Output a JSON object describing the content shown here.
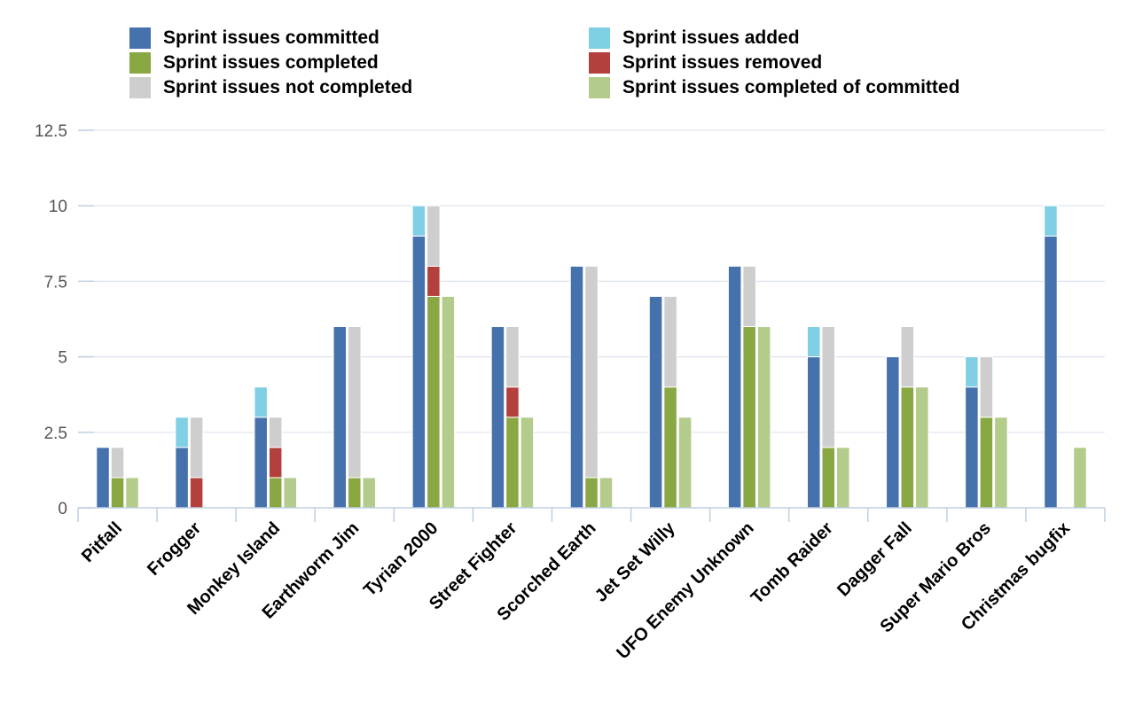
{
  "chart_data": {
    "type": "bar",
    "ylim": [
      0,
      12.5
    ],
    "y_ticks": [
      "0",
      "2.5",
      "5",
      "7.5",
      "10",
      "12.5"
    ],
    "y_tick_values": [
      0,
      2.5,
      5,
      7.5,
      10,
      12.5
    ],
    "grid": true,
    "legend_position": "top",
    "categories": [
      "Pitfall",
      "Frogger",
      "Monkey Island",
      "Earthworm Jim",
      "Tyrian 2000",
      "Street Fighter",
      "Scorched Earth",
      "Jet Set Willy",
      "UFO Enemy Unknown",
      "Tomb Raider",
      "Dagger Fall",
      "Super Mario Bros",
      "Christmas bugfix"
    ],
    "series": [
      {
        "name": "Sprint issues committed",
        "color": "#4571ad",
        "values": [
          2,
          2,
          3,
          6,
          9,
          6,
          8,
          7,
          8,
          5,
          5,
          4,
          9
        ]
      },
      {
        "name": "Sprint issues added",
        "color": "#7fcfe5",
        "values": [
          0,
          1,
          1,
          0,
          1,
          0,
          0,
          0,
          0,
          1,
          0,
          1,
          1
        ]
      },
      {
        "name": "Sprint issues completed",
        "color": "#89a743",
        "values": [
          1,
          0,
          1,
          1,
          7,
          3,
          1,
          4,
          6,
          2,
          4,
          3,
          0
        ]
      },
      {
        "name": "Sprint issues removed",
        "color": "#b3403c",
        "values": [
          0,
          1,
          1,
          0,
          1,
          1,
          0,
          0,
          0,
          0,
          0,
          0,
          0
        ]
      },
      {
        "name": "Sprint issues not completed",
        "color": "#cecece",
        "values": [
          1,
          2,
          1,
          5,
          2,
          2,
          7,
          3,
          2,
          4,
          2,
          2,
          0
        ]
      },
      {
        "name": "Sprint issues completed of committed",
        "color": "#b3cb8b",
        "values": [
          1,
          0,
          1,
          1,
          7,
          3,
          1,
          3,
          6,
          2,
          4,
          3,
          2
        ]
      }
    ],
    "stacks": [
      [
        "Sprint issues committed",
        "Sprint issues added"
      ],
      [
        "Sprint issues completed",
        "Sprint issues removed",
        "Sprint issues not completed"
      ],
      [
        "Sprint issues completed of committed"
      ]
    ]
  },
  "legend": [
    {
      "label": "Sprint issues committed",
      "color": "#4571ad"
    },
    {
      "label": "Sprint issues added",
      "color": "#7fcfe5"
    },
    {
      "label": "Sprint issues completed",
      "color": "#89a743"
    },
    {
      "label": "Sprint issues removed",
      "color": "#b3403c"
    },
    {
      "label": "Sprint issues not completed",
      "color": "#cecece"
    },
    {
      "label": "Sprint issues completed of committed",
      "color": "#b3cb8b"
    }
  ]
}
